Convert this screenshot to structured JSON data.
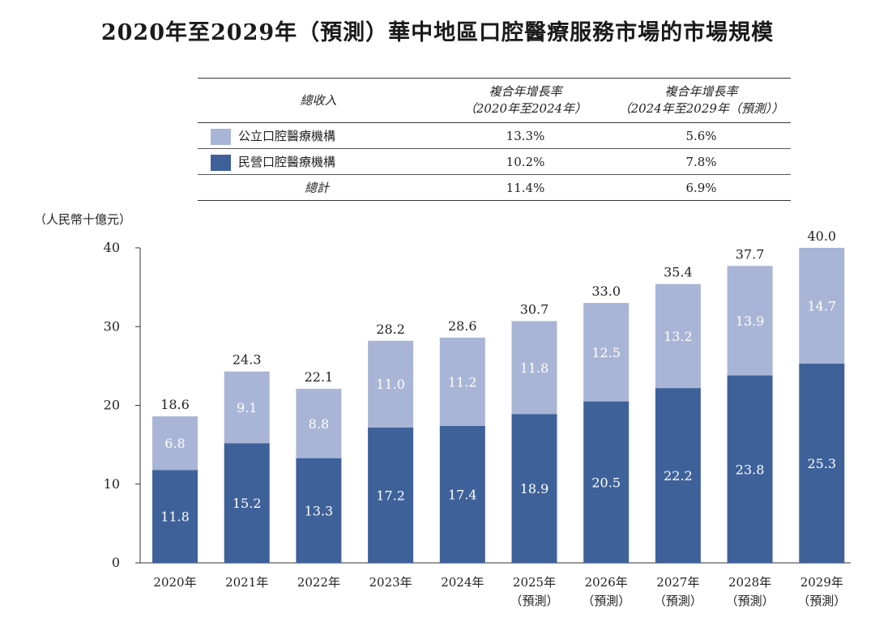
{
  "title": "2020年至2029年（預測）華中地區口腔醫療服務市場的市場規模",
  "table": {
    "header": {
      "label": "總收入",
      "col1_line1": "複合年增長率",
      "col1_line2": "（2020年至2024年）",
      "col2_line1": "複合年增長率",
      "col2_line2": "（2024年至2029年（預測））"
    },
    "rows": [
      {
        "label": "公立口腔醫療機構",
        "cagr1": "13.3%",
        "cagr2": "5.6%",
        "color": "#a9b5d6"
      },
      {
        "label": "民營口腔醫療機構",
        "cagr1": "10.2%",
        "cagr2": "7.8%",
        "color": "#3e619a"
      }
    ],
    "total": {
      "label": "總計",
      "cagr1": "11.4%",
      "cagr2": "6.9%"
    }
  },
  "chart_data": {
    "type": "bar",
    "stacked": true,
    "unit_label": "（人民幣十億元）",
    "categories": [
      [
        "2020年"
      ],
      [
        "2021年"
      ],
      [
        "2022年"
      ],
      [
        "2023年"
      ],
      [
        "2024年"
      ],
      [
        "2025年",
        "（預測）"
      ],
      [
        "2026年",
        "（預測）"
      ],
      [
        "2027年",
        "（預測）"
      ],
      [
        "2028年",
        "（預測）"
      ],
      [
        "2029年",
        "（預測）"
      ]
    ],
    "series": [
      {
        "name": "民營口腔醫療機構",
        "color": "#3e619a",
        "values": [
          11.8,
          15.2,
          13.3,
          17.2,
          17.4,
          18.9,
          20.5,
          22.2,
          23.8,
          25.3
        ]
      },
      {
        "name": "公立口腔醫療機構",
        "color": "#a9b5d6",
        "values": [
          6.8,
          9.1,
          8.8,
          11.0,
          11.2,
          11.8,
          12.5,
          13.2,
          13.9,
          14.7
        ]
      }
    ],
    "totals": [
      "18.6",
      "24.3",
      "22.1",
      "28.2",
      "28.6",
      "30.7",
      "33.0",
      "35.4",
      "37.7",
      "40.0"
    ],
    "ylim": [
      0,
      40
    ],
    "yticks": [
      0,
      10,
      20,
      30,
      40
    ],
    "grid": false,
    "legend": "table-above"
  }
}
